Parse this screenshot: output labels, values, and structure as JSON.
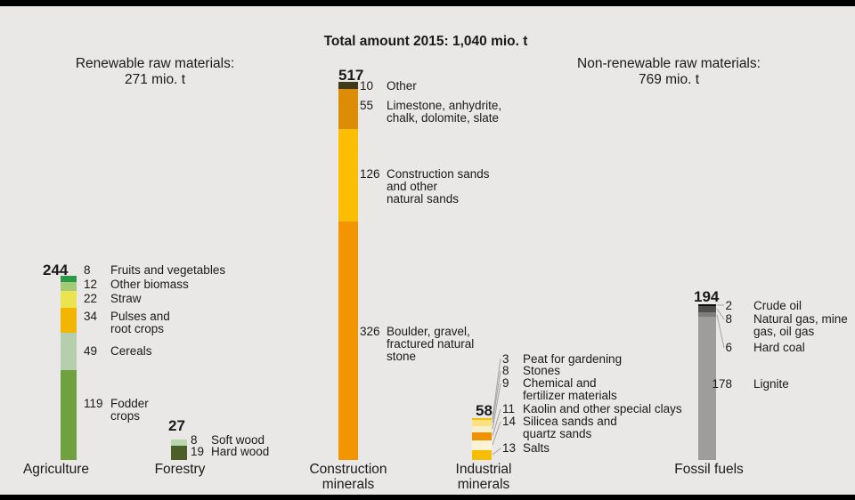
{
  "title": "Total amount 2015: 1,040 mio. t",
  "headers": {
    "renewable": "Renewable raw materials:\n271 mio. t",
    "non_renewable": "Non-renewable raw materials:\n769 mio. t"
  },
  "chart_data": {
    "type": "bar",
    "subtype": "stacked-vertical",
    "unit": "mio. t",
    "title": "Total amount 2015: 1,040 mio. t",
    "total_all": 1040,
    "group_totals": {
      "renewable": 271,
      "non_renewable": 769
    },
    "groups": [
      {
        "category": "Agriculture",
        "total": 244,
        "segments": [
          {
            "value": 8,
            "label": "Fruits and vegetables",
            "color": "#2b9a47"
          },
          {
            "value": 12,
            "label": "Other biomass",
            "color": "#a3c979"
          },
          {
            "value": 22,
            "label": "Straw",
            "color": "#e9e44f"
          },
          {
            "value": 34,
            "label": "Pulses and\nroot crops",
            "color": "#f3b600"
          },
          {
            "value": 49,
            "label": "Cereals",
            "color": "#b5cfad"
          },
          {
            "value": 119,
            "label": "Fodder\ncrops",
            "color": "#71a03f"
          }
        ]
      },
      {
        "category": "Forestry",
        "total": 27,
        "segments": [
          {
            "value": 8,
            "label": "Soft wood",
            "color": "#b9d8a9"
          },
          {
            "value": 19,
            "label": "Hard wood",
            "color": "#4c5f26"
          }
        ]
      },
      {
        "category": "Construction\nminerals",
        "total": 517,
        "segments": [
          {
            "value": 10,
            "label": "Other",
            "color": "#3f3a1a"
          },
          {
            "value": 55,
            "label": "Limestone, anhydrite,\nchalk, dolomite, slate",
            "color": "#dd8d05"
          },
          {
            "value": 126,
            "label": "Construction sands\nand other\nnatural sands",
            "color": "#fcbd02"
          },
          {
            "value": 326,
            "label": "Boulder, gravel,\nfractured natural\nstone",
            "color": "#f29500"
          }
        ]
      },
      {
        "category": "Industrial\nminerals",
        "total": 58,
        "segments": [
          {
            "value": 3,
            "label": "Peat for gardening",
            "color": "#edc200"
          },
          {
            "value": 8,
            "label": "Stones",
            "color": "#fce180"
          },
          {
            "value": 9,
            "label": "Chemical and\nfertilizer materials",
            "color": "#f7eecb"
          },
          {
            "value": 11,
            "label": "Kaolin and other special clays",
            "color": "#f09200"
          },
          {
            "value": 14,
            "label": "Silicea sands and\nquartz sands",
            "color": "#faf3d8"
          },
          {
            "value": 13,
            "label": "Salts",
            "color": "#f8bc00"
          }
        ]
      },
      {
        "category": "Fossil fuels",
        "total": 194,
        "segments": [
          {
            "value": 2,
            "label": "Crude oil",
            "color": "#0d0d0d"
          },
          {
            "value": 8,
            "label": "Natural gas, mine\ngas, oil gas",
            "color": "#4e4e4e"
          },
          {
            "value": 6,
            "label": "Hard coal",
            "color": "#7d7d7d"
          },
          {
            "value": 178,
            "label": "Lignite",
            "color": "#9d9d9d"
          }
        ]
      }
    ]
  },
  "colors": {
    "background": "#e9e8e6",
    "frame": "#000000",
    "text": "#1a1a1a",
    "leader_line": "#a3a3a0"
  }
}
